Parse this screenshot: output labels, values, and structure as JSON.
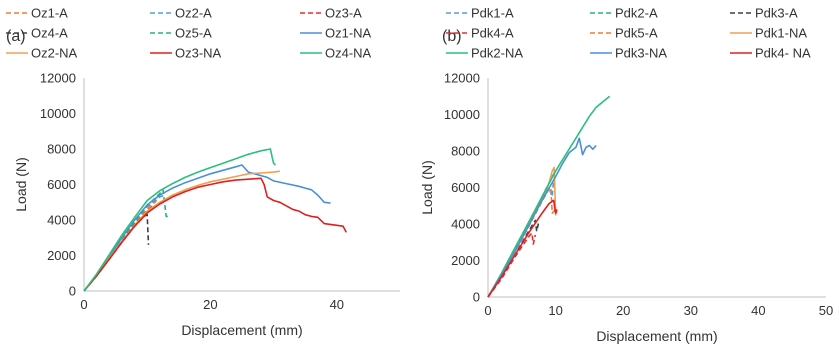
{
  "chart_data": [
    {
      "type": "line",
      "panel_label": "(a)",
      "xlabel": "Displacement (mm)",
      "ylabel": "Load (N)",
      "xlim": [
        0,
        50
      ],
      "ylim": [
        0,
        12000
      ],
      "xticks": [
        "0",
        "20",
        "40"
      ],
      "yticks": [
        "0",
        "2000",
        "4000",
        "6000",
        "8000",
        "10000",
        "12000"
      ],
      "grid": false,
      "legend": "top, 3 columns",
      "series": [
        {
          "name": "Oz1-A",
          "color": "#ed7d31",
          "dash": true,
          "x": [
            0,
            2,
            4,
            6,
            8,
            10,
            11.5
          ],
          "y": [
            0,
            900,
            1900,
            2900,
            3800,
            4600,
            5100
          ]
        },
        {
          "name": "Oz2-A",
          "color": "#5b9bd5",
          "dash": true,
          "x": [
            0,
            2,
            4,
            6,
            8,
            10,
            12,
            12.8
          ],
          "y": [
            0,
            900,
            1950,
            2950,
            3900,
            4750,
            5300,
            5400
          ]
        },
        {
          "name": "Oz3-A",
          "color": "#e03030",
          "dash": true,
          "x": [
            0,
            2,
            4,
            6,
            8,
            10,
            11
          ],
          "y": [
            0,
            850,
            1850,
            2850,
            3750,
            4500,
            4800
          ]
        },
        {
          "name": "Oz4-A",
          "color": "#404040",
          "dash": true,
          "x": [
            0,
            2,
            4,
            6,
            8,
            9.5,
            10,
            10.1,
            10.2
          ],
          "y": [
            0,
            850,
            1800,
            2750,
            3650,
            4200,
            4300,
            3500,
            2600
          ]
        },
        {
          "name": "Oz5-A",
          "color": "#2ab56e",
          "dash": true,
          "x": [
            0,
            2,
            4,
            6,
            8,
            10,
            12,
            12.5,
            13,
            13.5
          ],
          "y": [
            0,
            900,
            1950,
            2950,
            3900,
            4800,
            5500,
            5700,
            4200,
            4200
          ]
        },
        {
          "name": "Oz1-NA",
          "color": "#4a90d9",
          "dash": false,
          "x": [
            0,
            2,
            4,
            6,
            8,
            10,
            12,
            14,
            16,
            18,
            20,
            22,
            24,
            25,
            26,
            27,
            28,
            29,
            30,
            32,
            34,
            35,
            36,
            37,
            38,
            39
          ],
          "y": [
            0,
            900,
            1950,
            3000,
            4000,
            4850,
            5400,
            5800,
            6100,
            6350,
            6600,
            6800,
            7000,
            7100,
            6700,
            6600,
            6500,
            6400,
            6200,
            6050,
            5900,
            5800,
            5700,
            5400,
            5000,
            4950
          ]
        },
        {
          "name": "Oz2-NA",
          "color": "#f0a050",
          "dash": false,
          "x": [
            0,
            2,
            4,
            6,
            8,
            10,
            12,
            14,
            16,
            18,
            20,
            22,
            24,
            26,
            28,
            30,
            31
          ],
          "y": [
            0,
            850,
            1850,
            2800,
            3700,
            4500,
            5000,
            5400,
            5700,
            5950,
            6150,
            6300,
            6450,
            6600,
            6650,
            6700,
            6750
          ]
        },
        {
          "name": "Oz3-NA",
          "color": "#e02020",
          "dash": false,
          "x": [
            0,
            2,
            4,
            6,
            8,
            10,
            12,
            14,
            16,
            18,
            20,
            22,
            24,
            26,
            28,
            28.5,
            29,
            30,
            31,
            32,
            33,
            34,
            35,
            36,
            37,
            38,
            39,
            40,
            41,
            41.5
          ],
          "y": [
            0,
            850,
            1800,
            2750,
            3650,
            4400,
            4900,
            5300,
            5600,
            5850,
            6000,
            6150,
            6250,
            6300,
            6350,
            6000,
            5300,
            5100,
            5000,
            4800,
            4600,
            4500,
            4300,
            4200,
            4150,
            3800,
            3750,
            3700,
            3650,
            3300
          ]
        },
        {
          "name": "Oz4-NA",
          "color": "#2bbf7e",
          "dash": false,
          "x": [
            0,
            2,
            4,
            6,
            8,
            10,
            12,
            14,
            16,
            18,
            20,
            22,
            24,
            26,
            28,
            29.5,
            29.8,
            30,
            30.3
          ],
          "y": [
            0,
            950,
            2050,
            3150,
            4150,
            5100,
            5650,
            6050,
            6400,
            6700,
            6950,
            7200,
            7450,
            7700,
            7900,
            8000,
            7500,
            7200,
            7100
          ]
        }
      ]
    },
    {
      "type": "line",
      "panel_label": "(b)",
      "xlabel": "Displacement (mm)",
      "ylabel": "Load (N)",
      "xlim": [
        0,
        50
      ],
      "ylim": [
        0,
        12000
      ],
      "xticks": [
        "0",
        "10",
        "20",
        "30",
        "40",
        "50"
      ],
      "yticks": [
        "0",
        "2000",
        "4000",
        "6000",
        "8000",
        "10000",
        "12000"
      ],
      "grid": false,
      "legend": "top, 3 columns",
      "series": [
        {
          "name": "Pdk1-A",
          "color": "#5b9bd5",
          "dash": true,
          "x": [
            0,
            2,
            4,
            6,
            8,
            9,
            9.5,
            9.7
          ],
          "y": [
            0,
            1200,
            2500,
            3900,
            5300,
            6000,
            5500,
            6400
          ]
        },
        {
          "name": "Pdk2-A",
          "color": "#2ab56e",
          "dash": true,
          "x": [
            0,
            2,
            4,
            6,
            8,
            9.5,
            10
          ],
          "y": [
            0,
            1250,
            2600,
            4000,
            5500,
            6600,
            6900
          ]
        },
        {
          "name": "Pdk3-A",
          "color": "#404040",
          "dash": true,
          "x": [
            0,
            2,
            4,
            6,
            7,
            7.2,
            7.5
          ],
          "y": [
            0,
            1100,
            2300,
            3600,
            4200,
            3600,
            4100
          ]
        },
        {
          "name": "Pdk4-A",
          "color": "#e03030",
          "dash": true,
          "x": [
            0,
            2,
            4,
            6,
            6.5,
            6.7,
            7
          ],
          "y": [
            0,
            1000,
            2200,
            3300,
            3500,
            2900,
            3400
          ]
        },
        {
          "name": "Pdk5-A",
          "color": "#ed7d31",
          "dash": true,
          "x": [
            0,
            2,
            4,
            6,
            8,
            9,
            9.3,
            9.5,
            10
          ],
          "y": [
            0,
            1150,
            2450,
            3850,
            5250,
            5900,
            6000,
            4600,
            4800
          ]
        },
        {
          "name": "Pdk1-NA",
          "color": "#f0a050",
          "dash": false,
          "x": [
            0,
            2,
            4,
            6,
            8,
            9,
            9.5,
            9.8,
            10,
            10.2
          ],
          "y": [
            0,
            1200,
            2500,
            3900,
            5400,
            6200,
            6900,
            7100,
            4500,
            4700
          ]
        },
        {
          "name": "Pdk2-NA",
          "color": "#2bbf7e",
          "dash": false,
          "x": [
            0,
            2,
            4,
            6,
            8,
            10,
            12,
            14,
            15,
            16,
            17,
            18
          ],
          "y": [
            0,
            1300,
            2700,
            4100,
            5500,
            6900,
            8100,
            9300,
            9900,
            10400,
            10700,
            11000
          ]
        },
        {
          "name": "Pdk3-NA",
          "color": "#4a90d9",
          "dash": false,
          "x": [
            0,
            2,
            4,
            6,
            8,
            10,
            11,
            12,
            13,
            13.5,
            14,
            14.5,
            15,
            15.5,
            16
          ],
          "y": [
            0,
            1200,
            2500,
            3900,
            5300,
            6600,
            7300,
            7900,
            8200,
            8700,
            7800,
            8200,
            8300,
            8100,
            8300
          ]
        },
        {
          "name": "Pdk4- NA",
          "color": "#e02020",
          "dash": false,
          "x": [
            0,
            2,
            4,
            6,
            8,
            9,
            9.7,
            10,
            10.2
          ],
          "y": [
            0,
            1100,
            2300,
            3500,
            4600,
            5100,
            5300,
            4600,
            4800
          ]
        }
      ]
    }
  ]
}
